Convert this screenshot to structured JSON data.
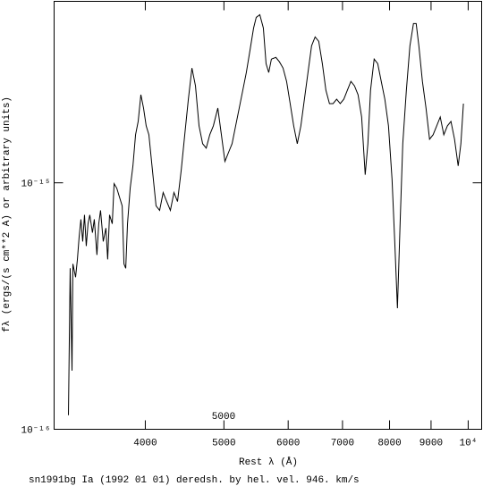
{
  "chart_data": {
    "type": "line",
    "x_label": "Rest λ (Å)",
    "y_label": "fλ (ergs/(s cm**2 A) or arbitrary units)",
    "caption": "sn1991bg Ia (1992 01 01) deredsh. by hel. vel.   946. km/s",
    "annotation": "5000",
    "xscale": "log",
    "yscale": "log",
    "xlim": [
      3088,
      10390
    ],
    "ylim": [
      1e-16,
      5.45e-15
    ],
    "xticks": [
      4000,
      5000,
      6000,
      7000,
      8000,
      9000,
      {
        "value": 10000,
        "label": "10⁴"
      }
    ],
    "yticks": [
      {
        "value": 1e-16,
        "label": "10⁻¹⁶"
      },
      {
        "value": 1e-15,
        "label": "10⁻¹⁵"
      }
    ],
    "series": [
      {
        "color": "#000000",
        "x": [
          3216,
          3232,
          3249,
          3257,
          3282,
          3299,
          3315,
          3332,
          3349,
          3366,
          3383,
          3400,
          3417,
          3443,
          3461,
          3487,
          3505,
          3523,
          3550,
          3577,
          3595,
          3614,
          3642,
          3661,
          3689,
          3717,
          3746,
          3765,
          3784,
          3803,
          3832,
          3862,
          3891,
          3920,
          3950,
          3980,
          4010,
          4041,
          4082,
          4124,
          4166,
          4208,
          4251,
          4295,
          4339,
          4383,
          4429,
          4474,
          4520,
          4566,
          4612,
          4659,
          4707,
          4755,
          4803,
          4852,
          4914,
          4964,
          5014,
          5065,
          5117,
          5169,
          5222,
          5275,
          5328,
          5384,
          5439,
          5480,
          5536,
          5592,
          5635,
          5678,
          5721,
          5794,
          5853,
          5913,
          5973,
          6034,
          6095,
          6157,
          6220,
          6283,
          6347,
          6412,
          6477,
          6544,
          6611,
          6678,
          6746,
          6815,
          6885,
          6955,
          7026,
          7097,
          7169,
          7242,
          7316,
          7391,
          7466,
          7523,
          7580,
          7658,
          7736,
          7814,
          7894,
          7976,
          8057,
          8119,
          8181,
          8243,
          8306,
          8391,
          8476,
          8562,
          8628,
          8694,
          8782,
          8872,
          8962,
          9053,
          9145,
          9238,
          9332,
          9427,
          9523,
          9620,
          9720,
          9795,
          9866
        ],
        "values": [
          1.14e-16,
          4.5e-16,
          1.73e-16,
          4.69e-16,
          4.14e-16,
          4.89e-16,
          6.02e-16,
          7.11e-16,
          5.78e-16,
          7.41e-16,
          5.54e-16,
          6.82e-16,
          7.41e-16,
          6.28e-16,
          7.11e-16,
          5.1e-16,
          6.82e-16,
          7.73e-16,
          5.78e-16,
          6.55e-16,
          4.89e-16,
          7.41e-16,
          6.82e-16,
          9.92e-16,
          9.51e-16,
          8.76e-16,
          8.06e-16,
          4.69e-16,
          4.5e-16,
          6.82e-16,
          9.51e-16,
          1.171e-15,
          1.567e-15,
          1.775e-15,
          2.278e-15,
          2.011e-15,
          1.702e-15,
          1.567e-15,
          1.123e-15,
          8.06e-16,
          7.73e-16,
          9.13e-16,
          8.4e-16,
          7.73e-16,
          9.13e-16,
          8.4e-16,
          1.123e-15,
          1.567e-15,
          2.184e-15,
          2.922e-15,
          2.475e-15,
          1.702e-15,
          1.441e-15,
          1.383e-15,
          1.567e-15,
          1.702e-15,
          2.011e-15,
          1.567e-15,
          1.221e-15,
          1.327e-15,
          1.441e-15,
          1.702e-15,
          2.011e-15,
          2.374e-15,
          2.803e-15,
          3.451e-15,
          4.247e-15,
          4.693e-15,
          4.811e-15,
          4.247e-15,
          3.045e-15,
          2.803e-15,
          3.176e-15,
          3.228e-15,
          3.097e-15,
          2.922e-15,
          2.58e-15,
          2.096e-15,
          1.702e-15,
          1.441e-15,
          1.702e-15,
          2.184e-15,
          2.803e-15,
          3.597e-15,
          3.908e-15,
          3.75e-15,
          3.045e-15,
          2.374e-15,
          2.096e-15,
          2.096e-15,
          2.184e-15,
          2.096e-15,
          2.184e-15,
          2.374e-15,
          2.58e-15,
          2.475e-15,
          2.278e-15,
          1.85e-15,
          1.078e-15,
          1.441e-15,
          2.374e-15,
          3.176e-15,
          3.045e-15,
          2.58e-15,
          2.184e-15,
          1.702e-15,
          1.034e-15,
          5.78e-16,
          3.1e-16,
          6.82e-16,
          1.441e-15,
          2.374e-15,
          3.597e-15,
          4.428e-15,
          4.428e-15,
          3.597e-15,
          2.58e-15,
          2.011e-15,
          1.503e-15,
          1.567e-15,
          1.702e-15,
          1.85e-15,
          1.567e-15,
          1.702e-15,
          1.775e-15,
          1.503e-15,
          1.171e-15,
          1.441e-15,
          2.096e-15
        ]
      }
    ]
  }
}
